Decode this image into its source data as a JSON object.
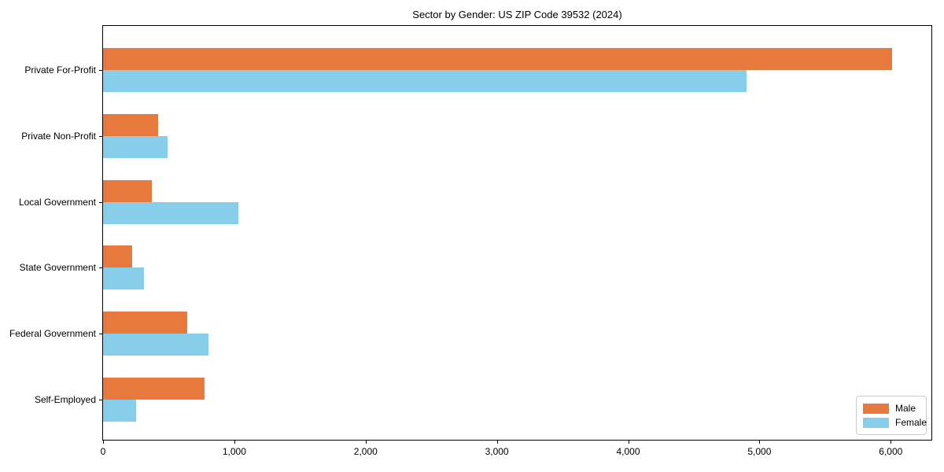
{
  "chart_data": {
    "type": "bar",
    "orientation": "horizontal",
    "title": "Sector by Gender: US ZIP Code 39532 (2024)",
    "categories": [
      "Private For-Profit",
      "Private Non-Profit",
      "Local Government",
      "State Government",
      "Federal Government",
      "Self-Employed"
    ],
    "series": [
      {
        "name": "Male",
        "color": "#e8793c",
        "values": [
          6010,
          420,
          370,
          220,
          640,
          770
        ]
      },
      {
        "name": "Female",
        "color": "#87ceeb",
        "values": [
          4900,
          490,
          1030,
          310,
          800,
          250
        ]
      }
    ],
    "x_ticks": [
      0,
      1000,
      2000,
      3000,
      4000,
      5000,
      6000
    ],
    "x_tick_labels": [
      "0",
      "1,000",
      "2,000",
      "3,000",
      "4,000",
      "5,000",
      "6,000"
    ],
    "xlim": [
      0,
      6310
    ],
    "xlabel": "",
    "ylabel": "",
    "grid": false,
    "legend_position": "lower right"
  }
}
